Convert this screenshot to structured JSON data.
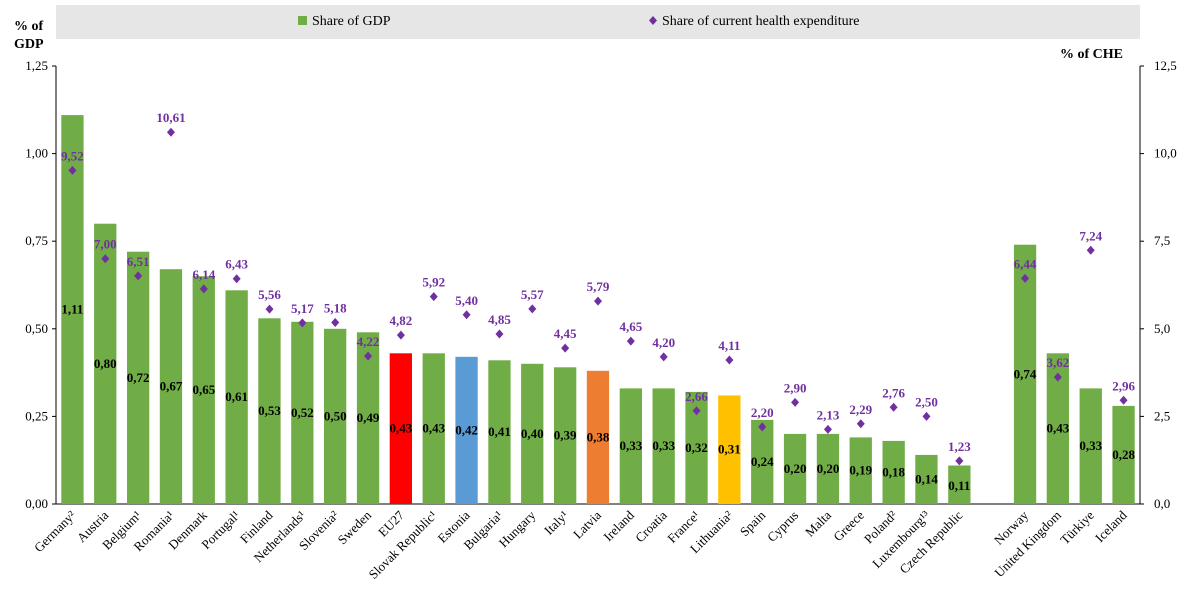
{
  "chart_data": {
    "type": "bar",
    "legend": {
      "gdp_label": "Share of GDP",
      "che_label": "Share of current health expenditure",
      "placement": "top"
    },
    "left_axis": {
      "title_line1": "% of",
      "title_line2": "GDP",
      "ylim": [
        0,
        1.25
      ],
      "ticks": [
        "0,00",
        "0,25",
        "0,50",
        "0,75",
        "1,00",
        "1,25"
      ]
    },
    "right_axis": {
      "title": "% of CHE",
      "ylim": [
        0,
        12.5
      ],
      "ticks": [
        "0,0",
        "2,5",
        "5,0",
        "7,5",
        "10,0",
        "12,5"
      ]
    },
    "colors": {
      "default_bar": "#70ad47",
      "eu27": "#ff0000",
      "estonia": "#5b9bd5",
      "latvia": "#ed7d31",
      "lithuania": "#ffc000",
      "che_marker": "#7030a0"
    },
    "categories": [
      {
        "name": "Germany²",
        "gdp": 1.11,
        "gdp_label": "1,11",
        "che": 9.52,
        "che_label": "9,52",
        "color": "default_bar"
      },
      {
        "name": "Austria",
        "gdp": 0.8,
        "gdp_label": "0,80",
        "che": 7.0,
        "che_label": "7,00",
        "color": "default_bar"
      },
      {
        "name": "Belgium¹",
        "gdp": 0.72,
        "gdp_label": "0,72",
        "che": 6.51,
        "che_label": "6,51",
        "color": "default_bar"
      },
      {
        "name": "Romania¹",
        "gdp": 0.67,
        "gdp_label": "0,67",
        "che": 10.61,
        "che_label": "10,61",
        "color": "default_bar"
      },
      {
        "name": "Denmark",
        "gdp": 0.65,
        "gdp_label": "0,65",
        "che": 6.14,
        "che_label": "6,14",
        "color": "default_bar"
      },
      {
        "name": "Portugal¹",
        "gdp": 0.61,
        "gdp_label": "0,61",
        "che": 6.43,
        "che_label": "6,43",
        "color": "default_bar"
      },
      {
        "name": "Finland",
        "gdp": 0.53,
        "gdp_label": "0,53",
        "che": 5.56,
        "che_label": "5,56",
        "color": "default_bar"
      },
      {
        "name": "Netherlands¹",
        "gdp": 0.52,
        "gdp_label": "0,52",
        "che": 5.17,
        "che_label": "5,17",
        "color": "default_bar"
      },
      {
        "name": "Slovenia²",
        "gdp": 0.5,
        "gdp_label": "0,50",
        "che": 5.18,
        "che_label": "5,18",
        "color": "default_bar"
      },
      {
        "name": "Sweden",
        "gdp": 0.49,
        "gdp_label": "0,49",
        "che": 4.22,
        "che_label": "4,22",
        "color": "default_bar"
      },
      {
        "name": "EU27",
        "gdp": 0.43,
        "gdp_label": "0,43",
        "che": 4.82,
        "che_label": "4,82",
        "color": "eu27"
      },
      {
        "name": "Slovak Republic¹",
        "gdp": 0.43,
        "gdp_label": "0,43",
        "che": 5.92,
        "che_label": "5,92",
        "color": "default_bar"
      },
      {
        "name": "Estonia",
        "gdp": 0.42,
        "gdp_label": "0,42",
        "che": 5.4,
        "che_label": "5,40",
        "color": "estonia"
      },
      {
        "name": "Bulgaria¹",
        "gdp": 0.41,
        "gdp_label": "0,41",
        "che": 4.85,
        "che_label": "4,85",
        "color": "default_bar"
      },
      {
        "name": "Hungary",
        "gdp": 0.4,
        "gdp_label": "0,40",
        "che": 5.57,
        "che_label": "5,57",
        "color": "default_bar"
      },
      {
        "name": "Italy¹",
        "gdp": 0.39,
        "gdp_label": "0,39",
        "che": 4.45,
        "che_label": "4,45",
        "color": "default_bar"
      },
      {
        "name": "Latvia",
        "gdp": 0.38,
        "gdp_label": "0,38",
        "che": 5.79,
        "che_label": "5,79",
        "color": "latvia"
      },
      {
        "name": "Ireland",
        "gdp": 0.33,
        "gdp_label": "0,33",
        "che": 4.65,
        "che_label": "4,65",
        "color": "default_bar"
      },
      {
        "name": "Croatia",
        "gdp": 0.33,
        "gdp_label": "0,33",
        "che": 4.2,
        "che_label": "4,20",
        "color": "default_bar"
      },
      {
        "name": "France¹",
        "gdp": 0.32,
        "gdp_label": "0,32",
        "che": 2.66,
        "che_label": "2,66",
        "color": "default_bar"
      },
      {
        "name": "Lithuania²",
        "gdp": 0.31,
        "gdp_label": "0,31",
        "che": 4.11,
        "che_label": "4,11",
        "color": "lithuania"
      },
      {
        "name": "Spain",
        "gdp": 0.24,
        "gdp_label": "0,24",
        "che": 2.2,
        "che_label": "2,20",
        "color": "default_bar"
      },
      {
        "name": "Cyprus",
        "gdp": 0.2,
        "gdp_label": "0,20",
        "che": 2.9,
        "che_label": "2,90",
        "color": "default_bar"
      },
      {
        "name": "Malta",
        "gdp": 0.2,
        "gdp_label": "0,20",
        "che": 2.13,
        "che_label": "2,13",
        "color": "default_bar"
      },
      {
        "name": "Greece",
        "gdp": 0.19,
        "gdp_label": "0,19",
        "che": 2.29,
        "che_label": "2,29",
        "color": "default_bar"
      },
      {
        "name": "Poland²",
        "gdp": 0.18,
        "gdp_label": "0,18",
        "che": 2.76,
        "che_label": "2,76",
        "color": "default_bar"
      },
      {
        "name": "Luxembourg¹³",
        "gdp": 0.14,
        "gdp_label": "0,14",
        "che": 2.5,
        "che_label": "2,50",
        "color": "default_bar"
      },
      {
        "name": "Czech Republic",
        "gdp": 0.11,
        "gdp_label": "0,11",
        "che": 1.23,
        "che_label": "1,23",
        "color": "default_bar"
      },
      {
        "name": "",
        "gap": true
      },
      {
        "name": "Norway",
        "gdp": 0.74,
        "gdp_label": "0,74",
        "che": 6.44,
        "che_label": "6,44",
        "color": "default_bar"
      },
      {
        "name": "United Kingdom",
        "gdp": 0.43,
        "gdp_label": "0,43",
        "che": 3.62,
        "che_label": "3,62",
        "color": "default_bar"
      },
      {
        "name": "Türkiye",
        "gdp": 0.33,
        "gdp_label": "0,33",
        "che": 7.24,
        "che_label": "7,24",
        "color": "default_bar"
      },
      {
        "name": "Iceland",
        "gdp": 0.28,
        "gdp_label": "0,28",
        "che": 2.96,
        "che_label": "2,96",
        "color": "default_bar"
      }
    ]
  }
}
